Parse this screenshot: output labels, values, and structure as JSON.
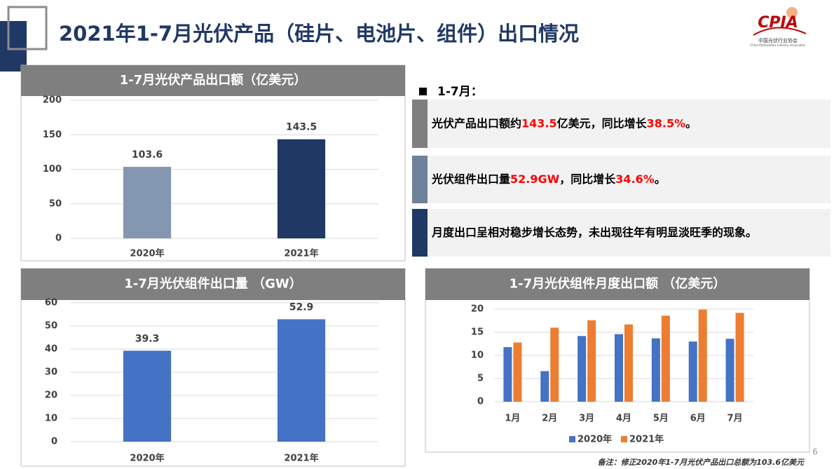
{
  "header": {
    "title": "2021年1-7月光伏产品（硅片、电池片、组件）出口情况",
    "logo": "CPIA",
    "logo_cn": "中国光伏行业协会",
    "logo_en": "China Photovoltaic Industry Association"
  },
  "summary": {
    "heading": "1-7月：",
    "bullets": [
      {
        "accent": "#7f7f7f",
        "parts": [
          {
            "text": "光伏产品出口额约",
            "color": "#000000"
          },
          {
            "text": "143.5",
            "color": "#ff0000"
          },
          {
            "text": "亿美元，同比增长",
            "color": "#000000"
          },
          {
            "text": "38.5%",
            "color": "#ff0000"
          },
          {
            "text": "。",
            "color": "#000000"
          }
        ]
      },
      {
        "accent": "#6e8199",
        "parts": [
          {
            "text": "光伏组件出口量",
            "color": "#000000"
          },
          {
            "text": "52.9GW",
            "color": "#ff0000"
          },
          {
            "text": "，同比增长",
            "color": "#000000"
          },
          {
            "text": "34.6%",
            "color": "#ff0000"
          },
          {
            "text": "。",
            "color": "#000000"
          }
        ]
      },
      {
        "accent": "#203864",
        "parts": [
          {
            "text": "月度出口呈相对稳步增长态势，未出现往年有明显淡旺季的现象。",
            "color": "#000000"
          }
        ]
      }
    ]
  },
  "chart_data": [
    {
      "type": "bar",
      "title": "1-7月光伏产品出口额（亿美元）",
      "categories": [
        "2020年",
        "2021年"
      ],
      "values": [
        103.6,
        143.5
      ],
      "colors": [
        "#8497b0",
        "#203864"
      ],
      "ylim": [
        0,
        200
      ],
      "yticks": [
        0,
        50,
        100,
        150,
        200
      ],
      "grid": true
    },
    {
      "type": "bar",
      "title": "1-7月光伏组件出口量 （GW）",
      "categories": [
        "2020年",
        "2021年"
      ],
      "values": [
        39.3,
        52.9
      ],
      "colors": [
        "#4472c4",
        "#4472c4"
      ],
      "ylim": [
        0,
        60
      ],
      "yticks": [
        0,
        10,
        20,
        30,
        40,
        50,
        60
      ],
      "grid": true
    },
    {
      "type": "grouped_bar",
      "title": "1-7月光伏组件月度出口额 （亿美元）",
      "categories": [
        "1月",
        "2月",
        "3月",
        "4月",
        "5月",
        "6月",
        "7月"
      ],
      "series": [
        {
          "name": "2020年",
          "color": "#4472c4",
          "values": [
            11.8,
            6.6,
            14.2,
            14.6,
            13.7,
            13.0,
            13.6
          ]
        },
        {
          "name": "2021年",
          "color": "#ed7d31",
          "values": [
            12.8,
            16.0,
            17.6,
            16.7,
            18.6,
            19.9,
            19.2
          ]
        }
      ],
      "ylim": [
        0,
        20
      ],
      "yticks": [
        0,
        5,
        10,
        15,
        20
      ],
      "grid": true,
      "legend": "bottom"
    }
  ],
  "footer": {
    "note": "备注：修正2020年1-7月光伏产品出口总额为103.6亿美元",
    "page": "6"
  }
}
